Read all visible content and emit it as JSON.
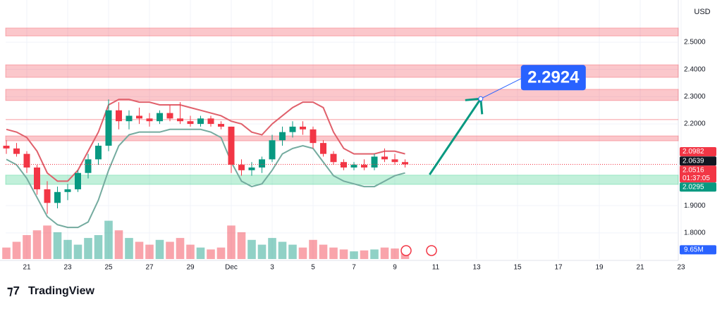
{
  "chart_data": {
    "type": "candlestick",
    "currency": "USD",
    "xlim": [
      -1,
      32
    ],
    "ylim": [
      1.704,
      2.655
    ],
    "xticks": [
      {
        "value": 0,
        "label": "21"
      },
      {
        "value": 2,
        "label": "23"
      },
      {
        "value": 4,
        "label": "25"
      },
      {
        "value": 6,
        "label": "27"
      },
      {
        "value": 8,
        "label": "29"
      },
      {
        "value": 10,
        "label": "Dec"
      },
      {
        "value": 12,
        "label": "3"
      },
      {
        "value": 14,
        "label": "5"
      },
      {
        "value": 16,
        "label": "7"
      },
      {
        "value": 18,
        "label": "9"
      },
      {
        "value": 20,
        "label": "11"
      },
      {
        "value": 22,
        "label": "13"
      },
      {
        "value": 24,
        "label": "15"
      },
      {
        "value": 26,
        "label": "17"
      },
      {
        "value": 28,
        "label": "19"
      },
      {
        "value": 30,
        "label": "21"
      },
      {
        "value": 32,
        "label": "23"
      }
    ],
    "yticks": [
      {
        "value": 2.5,
        "label": "2.5000"
      },
      {
        "value": 2.4,
        "label": "2.4000"
      },
      {
        "value": 2.3,
        "label": "2.3000"
      },
      {
        "value": 2.2,
        "label": "2.2000"
      },
      {
        "value": 1.9,
        "label": "1.9000"
      },
      {
        "value": 1.8,
        "label": "1.8000"
      }
    ],
    "up_color": "#089981",
    "down_color": "#f23645",
    "candles": {
      "x": [
        -1,
        -0.5,
        0,
        0.5,
        1,
        1.5,
        2,
        2.5,
        3,
        3.5,
        4,
        4.5,
        5,
        5.5,
        6,
        6.5,
        7,
        7.5,
        8,
        8.5,
        9,
        9.5,
        10,
        10.5,
        11,
        11.5,
        12,
        12.5,
        13,
        13.5,
        14,
        14.5,
        15,
        15.5,
        16,
        16.5,
        17,
        17.5,
        18,
        18.5
      ],
      "open": [
        2.12,
        2.11,
        2.09,
        2.04,
        1.96,
        1.91,
        1.95,
        1.96,
        2.02,
        2.07,
        2.12,
        2.25,
        2.21,
        2.23,
        2.22,
        2.21,
        2.24,
        2.22,
        2.21,
        2.2,
        2.22,
        2.2,
        2.19,
        2.05,
        2.03,
        2.04,
        2.07,
        2.14,
        2.17,
        2.19,
        2.18,
        2.13,
        2.09,
        2.06,
        2.04,
        2.05,
        2.04,
        2.08,
        2.07,
        2.06
      ],
      "high": [
        2.14,
        2.13,
        2.1,
        2.05,
        1.99,
        1.97,
        1.98,
        2.03,
        2.09,
        2.13,
        2.29,
        2.28,
        2.25,
        2.26,
        2.24,
        2.25,
        2.27,
        2.28,
        2.23,
        2.23,
        2.23,
        2.21,
        2.19,
        2.07,
        2.06,
        2.08,
        2.16,
        2.19,
        2.21,
        2.21,
        2.19,
        2.14,
        2.1,
        2.07,
        2.06,
        2.07,
        2.09,
        2.11,
        2.09,
        2.07
      ],
      "low": [
        2.09,
        2.08,
        2.02,
        1.94,
        1.87,
        1.89,
        1.92,
        1.95,
        2.0,
        2.05,
        2.1,
        2.18,
        2.18,
        2.2,
        2.19,
        2.2,
        2.21,
        2.2,
        2.19,
        2.19,
        2.19,
        2.18,
        2.02,
        2.01,
        2.01,
        2.02,
        2.06,
        2.12,
        2.15,
        2.16,
        2.11,
        2.08,
        2.05,
        2.03,
        2.03,
        2.03,
        2.03,
        2.06,
        2.05,
        2.04
      ],
      "close": [
        2.11,
        2.09,
        2.04,
        1.96,
        1.91,
        1.95,
        1.96,
        2.02,
        2.07,
        2.12,
        2.25,
        2.21,
        2.23,
        2.22,
        2.21,
        2.24,
        2.22,
        2.21,
        2.2,
        2.22,
        2.2,
        2.19,
        2.05,
        2.03,
        2.04,
        2.07,
        2.14,
        2.17,
        2.19,
        2.18,
        2.13,
        2.09,
        2.06,
        2.04,
        2.05,
        2.04,
        2.08,
        2.07,
        2.06,
        2.0516
      ]
    },
    "bands": [
      {
        "color": "#e0606b",
        "values": [
          2.18,
          2.17,
          2.15,
          2.1,
          2.02,
          1.99,
          1.99,
          2.03,
          2.1,
          2.17,
          2.27,
          2.29,
          2.29,
          2.28,
          2.28,
          2.27,
          2.27,
          2.27,
          2.26,
          2.25,
          2.24,
          2.23,
          2.21,
          2.2,
          2.17,
          2.16,
          2.2,
          2.23,
          2.26,
          2.28,
          2.28,
          2.26,
          2.17,
          2.11,
          2.09,
          2.09,
          2.09,
          2.1,
          2.1,
          2.09
        ]
      },
      {
        "color": "#74ab9f",
        "values": [
          2.07,
          2.05,
          2.0,
          1.93,
          1.86,
          1.83,
          1.82,
          1.82,
          1.84,
          1.92,
          2.03,
          2.12,
          2.16,
          2.17,
          2.17,
          2.17,
          2.18,
          2.18,
          2.18,
          2.18,
          2.17,
          2.15,
          2.06,
          1.99,
          1.97,
          1.98,
          2.03,
          2.09,
          2.11,
          2.12,
          2.11,
          2.06,
          2.01,
          1.99,
          1.98,
          1.97,
          1.97,
          1.99,
          2.01,
          2.02
        ]
      }
    ],
    "volume": {
      "ylim": [
        0,
        50
      ],
      "values": [
        12,
        18,
        25,
        30,
        35,
        28,
        20,
        15,
        22,
        25,
        40,
        30,
        22,
        18,
        15,
        20,
        18,
        22,
        15,
        12,
        10,
        12,
        35,
        28,
        20,
        15,
        22,
        18,
        15,
        12,
        20,
        15,
        12,
        10,
        8,
        9,
        10,
        12,
        11,
        9.65
      ],
      "last_label": "9.65M"
    },
    "zones": [
      {
        "from": 2.523,
        "to": 2.552,
        "color": "#f23645"
      },
      {
        "from": 2.371,
        "to": 2.417,
        "color": "#f23645"
      },
      {
        "from": 2.286,
        "to": 2.327,
        "color": "#f23645"
      },
      {
        "from": 2.138,
        "to": 2.156,
        "color": "#f23645"
      },
      {
        "from": 1.978,
        "to": 2.012,
        "color": "#22c97a"
      }
    ],
    "level_line": 2.216,
    "price_labels": [
      {
        "value": 2.0982,
        "color": "#f23645"
      },
      {
        "value": 2.0639,
        "color": "#131722"
      },
      {
        "value": 2.0516,
        "color": "#f23645",
        "sub": "01:37:05"
      },
      {
        "value": 2.0295,
        "color": "#089981"
      }
    ],
    "arrow": {
      "x": [
        19.7,
        22.2
      ],
      "y": [
        2.014,
        2.2924
      ],
      "color": "#089981"
    },
    "target": {
      "x": 22.2,
      "y": 2.2924,
      "label": "2.2924",
      "color": "#2962ff"
    }
  },
  "footer": {
    "brand": "TradingView"
  }
}
